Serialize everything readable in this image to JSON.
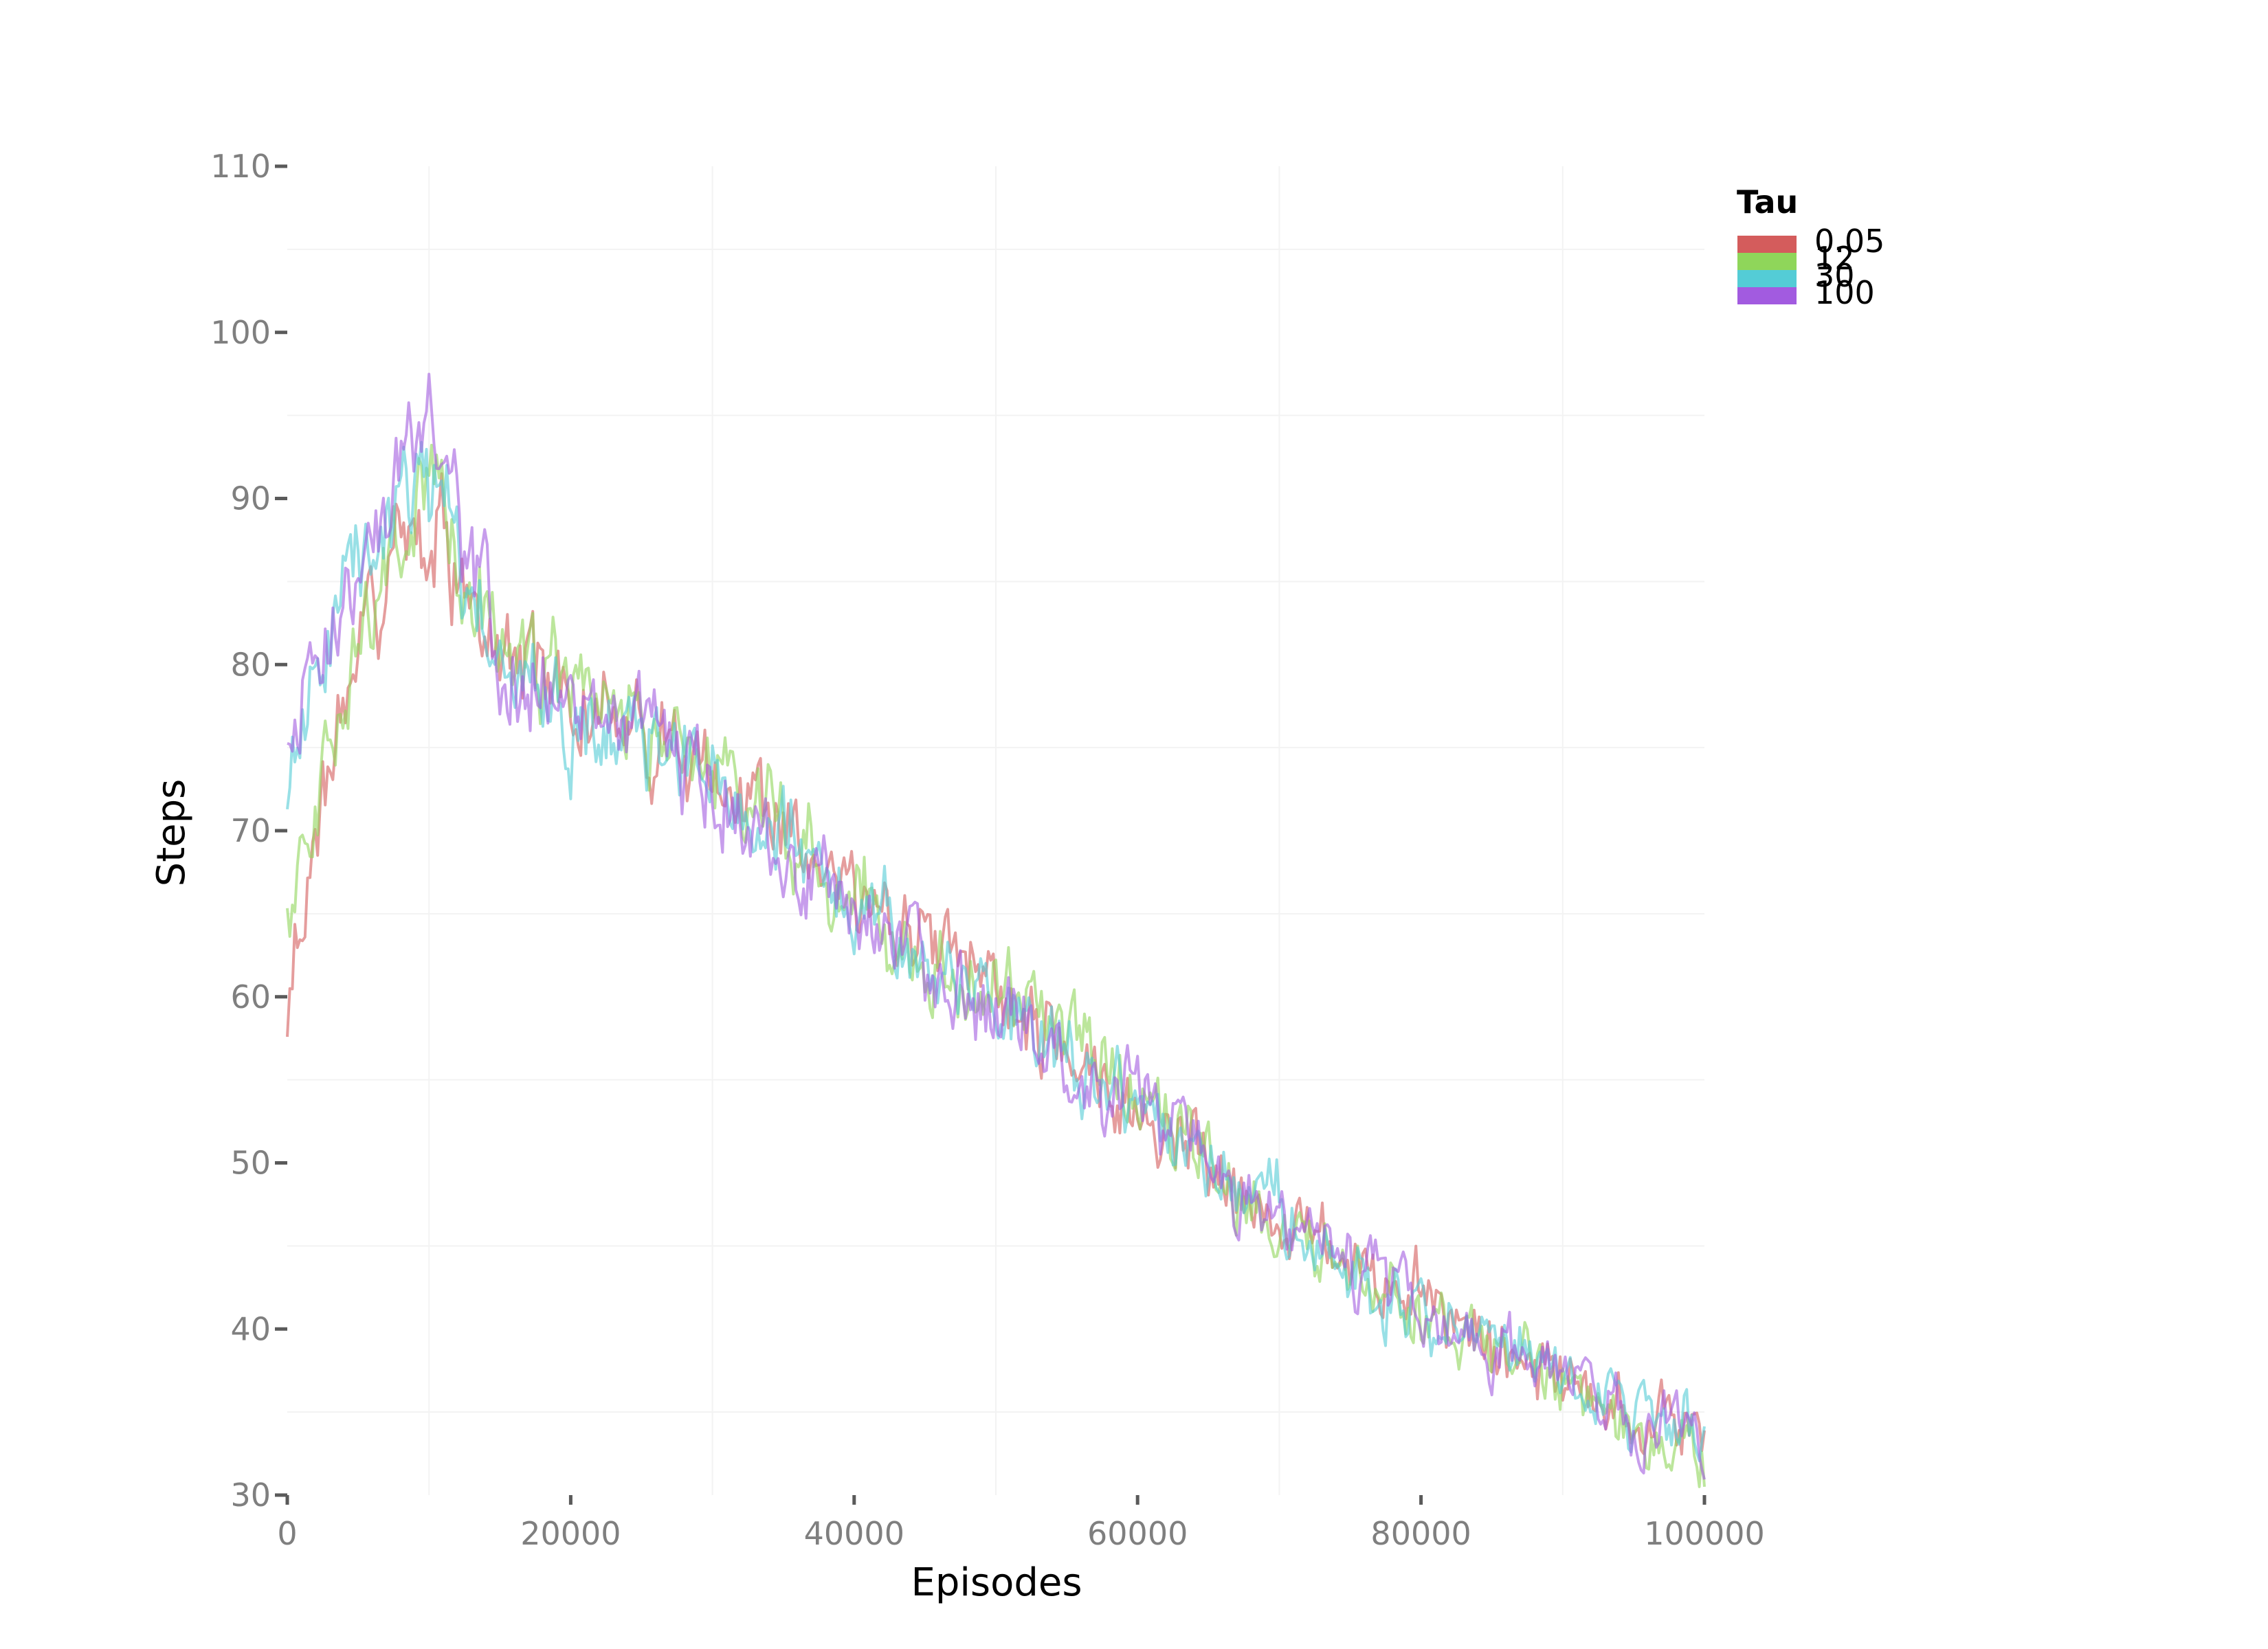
{
  "chart_data": {
    "type": "line",
    "title": "",
    "xlabel": "Episodes",
    "ylabel": "Steps",
    "xlim": [
      0,
      100000
    ],
    "ylim": [
      30,
      110
    ],
    "x_ticks": [
      0,
      20000,
      40000,
      60000,
      80000,
      100000
    ],
    "y_ticks": [
      30,
      40,
      50,
      60,
      70,
      80,
      90,
      100,
      110
    ],
    "grid": true,
    "legend": {
      "title": "Tau",
      "position": "top-right"
    },
    "x": [
      0,
      5000,
      10000,
      15000,
      20000,
      25000,
      30000,
      35000,
      40000,
      45000,
      50000,
      55000,
      60000,
      65000,
      70000,
      75000,
      80000,
      85000,
      90000,
      95000,
      100000
    ],
    "series": [
      {
        "name": "0.05",
        "color": "#d45c5c",
        "values": [
          60,
          83,
          89,
          80,
          78,
          76,
          74,
          71,
          66,
          63,
          61,
          56,
          53,
          50,
          47,
          44,
          42,
          39,
          37,
          35,
          33
        ]
      },
      {
        "name": "12",
        "color": "#8fd65a",
        "values": [
          66,
          82,
          92,
          81,
          78,
          77,
          74,
          70,
          67,
          62,
          60,
          58,
          54,
          50,
          46,
          44,
          41,
          39,
          37,
          34,
          31
        ]
      },
      {
        "name": "30",
        "color": "#54ccd6",
        "values": [
          72,
          87,
          91,
          80,
          77,
          75,
          73,
          70,
          65,
          62,
          60,
          56,
          54,
          50,
          47,
          43,
          41,
          40,
          37,
          35,
          34
        ]
      },
      {
        "name": "100",
        "color": "#a25be0",
        "values": [
          76,
          85,
          96,
          80,
          77,
          76,
          72,
          68,
          65,
          62,
          59,
          56,
          54,
          49,
          47,
          44,
          41,
          39,
          37,
          34,
          34
        ]
      }
    ]
  }
}
